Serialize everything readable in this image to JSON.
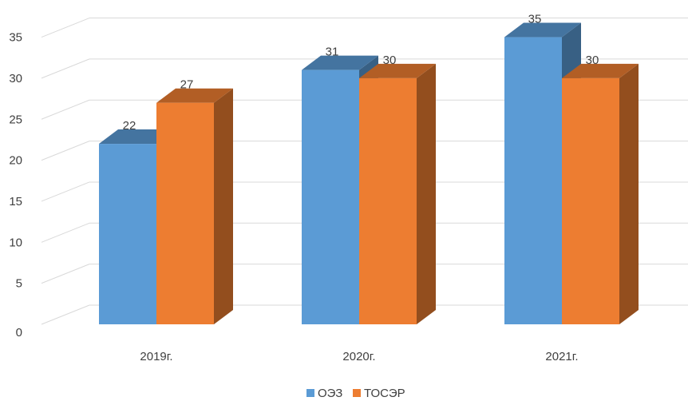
{
  "chart_data": {
    "type": "bar",
    "style": "3d-clustered-column",
    "categories": [
      "2019г.",
      "2020г.",
      "2021г."
    ],
    "series": [
      {
        "name": "ОЭЗ",
        "values": [
          22,
          31,
          35
        ],
        "color": "#5B9BD5"
      },
      {
        "name": "ТОСЭР",
        "values": [
          27,
          30,
          30
        ],
        "color": "#ED7D31"
      }
    ],
    "ylim": [
      0,
      35
    ],
    "yticks": [
      0,
      5,
      10,
      15,
      20,
      25,
      30,
      35
    ],
    "grid": true,
    "legend_position": "bottom"
  }
}
